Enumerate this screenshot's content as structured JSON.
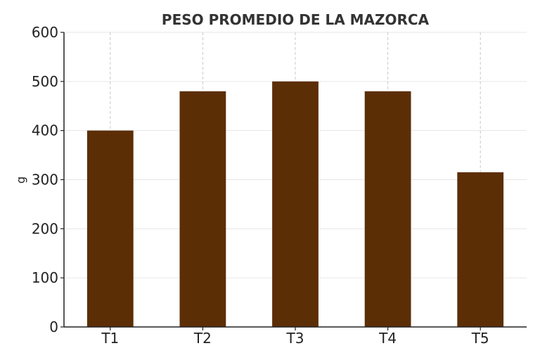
{
  "chart_data": {
    "type": "bar",
    "title": "PESO PROMEDIO DE LA MAZORCA",
    "xlabel": "",
    "ylabel": "g",
    "categories": [
      "T1",
      "T2",
      "T3",
      "T4",
      "T5"
    ],
    "values": [
      400,
      480,
      500,
      480,
      315
    ],
    "ylim": [
      0,
      600
    ],
    "yticks": [
      0,
      100,
      200,
      300,
      400,
      500,
      600
    ],
    "ytick_labels": [
      "0",
      "100",
      "200",
      "300",
      "400",
      "500",
      "600"
    ],
    "grid": "on",
    "legend": "none",
    "colors": {
      "bar": "#5c2e06",
      "grid": "#e6e6e6",
      "axis": "#222222",
      "title": "#333333"
    }
  }
}
